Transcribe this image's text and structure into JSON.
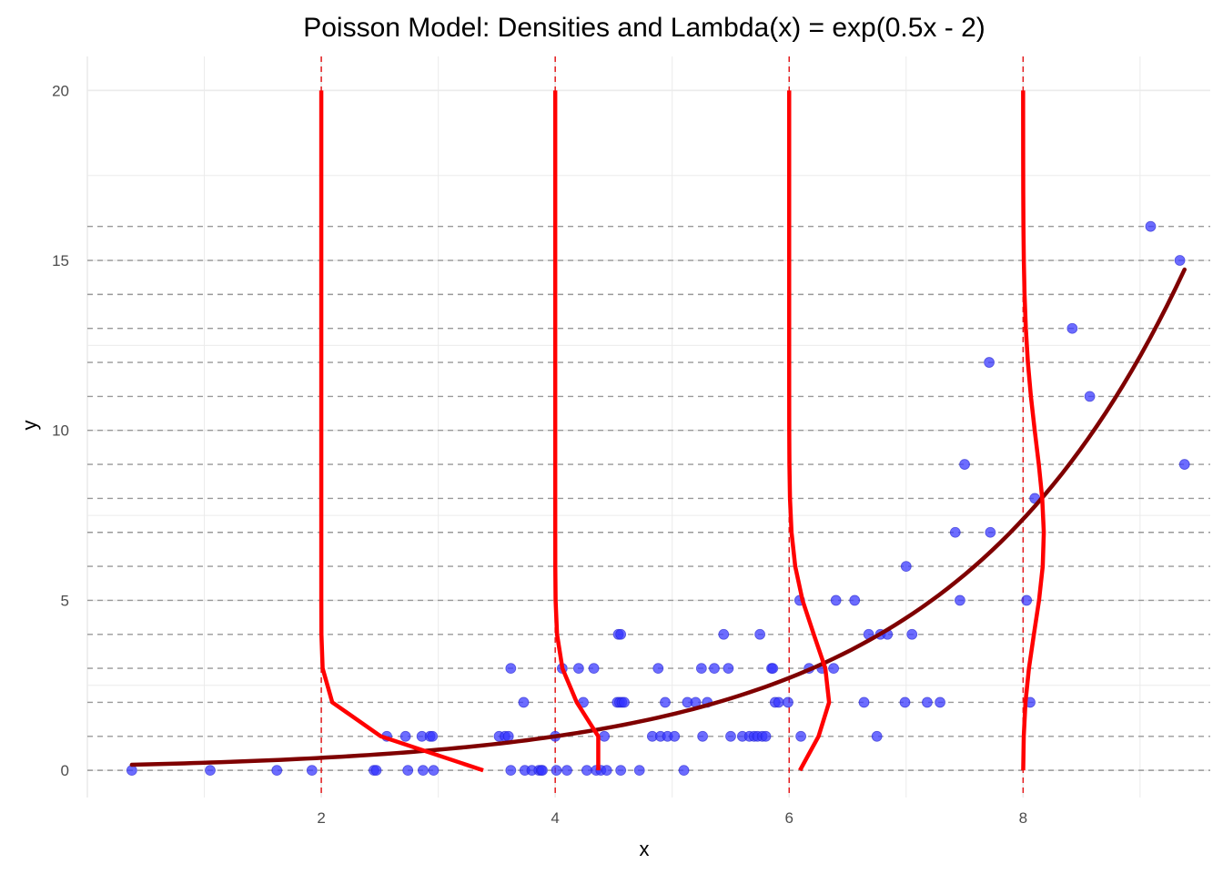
{
  "chart_data": {
    "type": "scatter",
    "title": "Poisson Model: Densities and Lambda(x) = exp(0.5x - 2)",
    "xlabel": "x",
    "ylabel": "y",
    "xlim": [
      0,
      9.6
    ],
    "ylim": [
      -0.8,
      21
    ],
    "x_ticks": [
      2,
      4,
      6,
      8
    ],
    "y_ticks": [
      0,
      5,
      10,
      15,
      20
    ],
    "grid": true,
    "colors": {
      "points": "#3333ff",
      "lambda_curve": "#7f0000",
      "density_curves": "#ff0000",
      "reference_lines": "#e41a1c",
      "level_lines": "#999999",
      "grid": "#ebebeb"
    },
    "points": [
      [
        0.38,
        0
      ],
      [
        1.05,
        0
      ],
      [
        1.62,
        0
      ],
      [
        1.92,
        0
      ],
      [
        2.45,
        0
      ],
      [
        2.47,
        0
      ],
      [
        2.56,
        1
      ],
      [
        2.72,
        1
      ],
      [
        2.74,
        0
      ],
      [
        2.86,
        1
      ],
      [
        2.87,
        0
      ],
      [
        2.93,
        1
      ],
      [
        2.95,
        1
      ],
      [
        2.96,
        0
      ],
      [
        3.52,
        1
      ],
      [
        3.57,
        1
      ],
      [
        3.6,
        1
      ],
      [
        3.62,
        3
      ],
      [
        3.62,
        0
      ],
      [
        3.73,
        2
      ],
      [
        3.74,
        0
      ],
      [
        3.8,
        0
      ],
      [
        3.86,
        0
      ],
      [
        3.88,
        0
      ],
      [
        3.89,
        0
      ],
      [
        4.0,
        1
      ],
      [
        4.01,
        0
      ],
      [
        4.06,
        3
      ],
      [
        4.1,
        0
      ],
      [
        4.2,
        3
      ],
      [
        4.24,
        2
      ],
      [
        4.27,
        0
      ],
      [
        4.33,
        3
      ],
      [
        4.35,
        0
      ],
      [
        4.39,
        0
      ],
      [
        4.42,
        1
      ],
      [
        4.44,
        0
      ],
      [
        4.53,
        2
      ],
      [
        4.54,
        4
      ],
      [
        4.55,
        2
      ],
      [
        4.56,
        4
      ],
      [
        4.56,
        0
      ],
      [
        4.57,
        2
      ],
      [
        4.59,
        2
      ],
      [
        4.72,
        0
      ],
      [
        4.83,
        1
      ],
      [
        4.88,
        3
      ],
      [
        4.9,
        1
      ],
      [
        4.94,
        2
      ],
      [
        4.96,
        1
      ],
      [
        5.02,
        1
      ],
      [
        5.1,
        0
      ],
      [
        5.13,
        2
      ],
      [
        5.2,
        2
      ],
      [
        5.25,
        3
      ],
      [
        5.26,
        1
      ],
      [
        5.3,
        2
      ],
      [
        5.36,
        3
      ],
      [
        5.44,
        4
      ],
      [
        5.48,
        3
      ],
      [
        5.5,
        1
      ],
      [
        5.6,
        1
      ],
      [
        5.66,
        1
      ],
      [
        5.7,
        1
      ],
      [
        5.73,
        1
      ],
      [
        5.75,
        4
      ],
      [
        5.77,
        1
      ],
      [
        5.8,
        1
      ],
      [
        5.85,
        3
      ],
      [
        5.86,
        3
      ],
      [
        5.88,
        2
      ],
      [
        5.91,
        2
      ],
      [
        5.99,
        2
      ],
      [
        6.09,
        5
      ],
      [
        6.1,
        1
      ],
      [
        6.17,
        3
      ],
      [
        6.28,
        3
      ],
      [
        6.38,
        3
      ],
      [
        6.4,
        5
      ],
      [
        6.56,
        5
      ],
      [
        6.64,
        2
      ],
      [
        6.68,
        4
      ],
      [
        6.75,
        1
      ],
      [
        6.78,
        4
      ],
      [
        6.84,
        4
      ],
      [
        6.99,
        2
      ],
      [
        7.0,
        6
      ],
      [
        7.05,
        4
      ],
      [
        7.18,
        2
      ],
      [
        7.29,
        2
      ],
      [
        7.42,
        7
      ],
      [
        7.46,
        5
      ],
      [
        7.5,
        9
      ],
      [
        7.71,
        12
      ],
      [
        7.72,
        7
      ],
      [
        8.03,
        5
      ],
      [
        8.06,
        2
      ],
      [
        8.1,
        8
      ],
      [
        8.42,
        13
      ],
      [
        8.57,
        11
      ],
      [
        9.09,
        16
      ],
      [
        9.34,
        15
      ],
      [
        9.38,
        9
      ]
    ],
    "lambda_curve": {
      "x_range": [
        0.38,
        9.38
      ],
      "intercept": -2,
      "slope": 0.5
    },
    "density_curves": [
      {
        "x0": 2,
        "lambda": 0.3679,
        "width": 2.0
      },
      {
        "x0": 4,
        "lambda": 1.0,
        "width": 1.0
      },
      {
        "x0": 6,
        "lambda": 2.7183,
        "width": 1.4
      },
      {
        "x0": 8,
        "lambda": 7.3891,
        "width": 1.2
      }
    ],
    "reference_lines_x": [
      2,
      4,
      6,
      8
    ],
    "level_lines_y": [
      0,
      1,
      2,
      3,
      4,
      5,
      6,
      7,
      8,
      9,
      10,
      11,
      12,
      13,
      14,
      15,
      16
    ]
  }
}
